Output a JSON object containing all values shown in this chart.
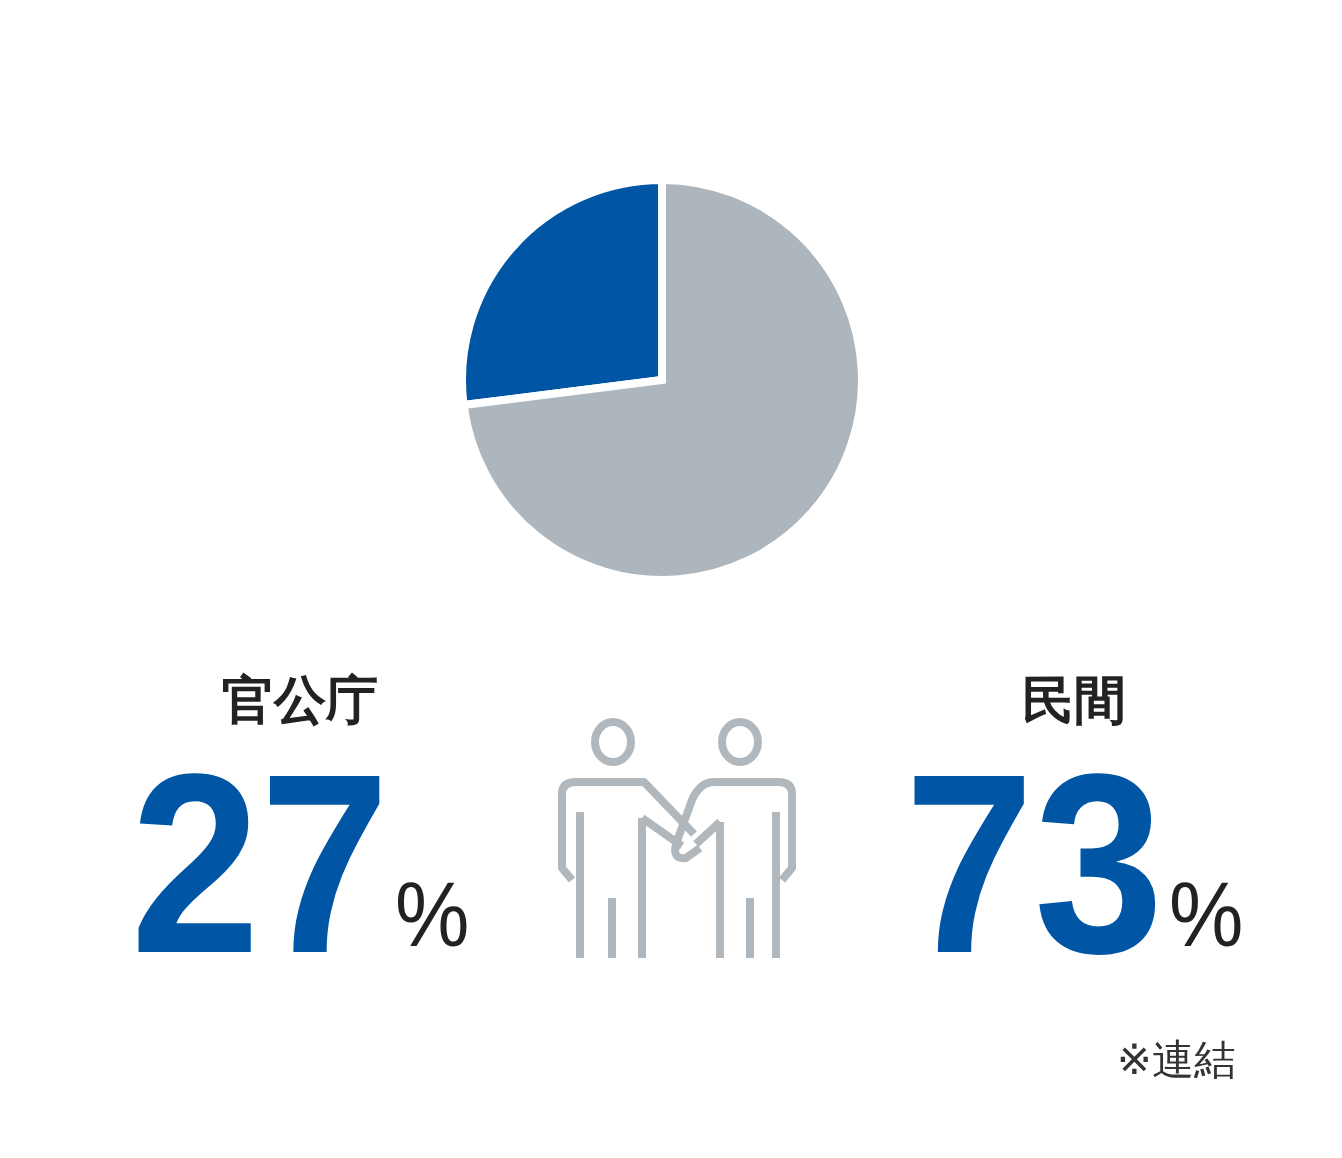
{
  "chart_data": {
    "type": "pie",
    "categories": [
      "官公庁",
      "民間"
    ],
    "values": [
      27,
      73
    ],
    "colors": [
      "#0055a5",
      "#adb6bd"
    ],
    "value_labels": [
      "27%",
      "73%"
    ],
    "annotations": [
      "※連結"
    ]
  }
}
